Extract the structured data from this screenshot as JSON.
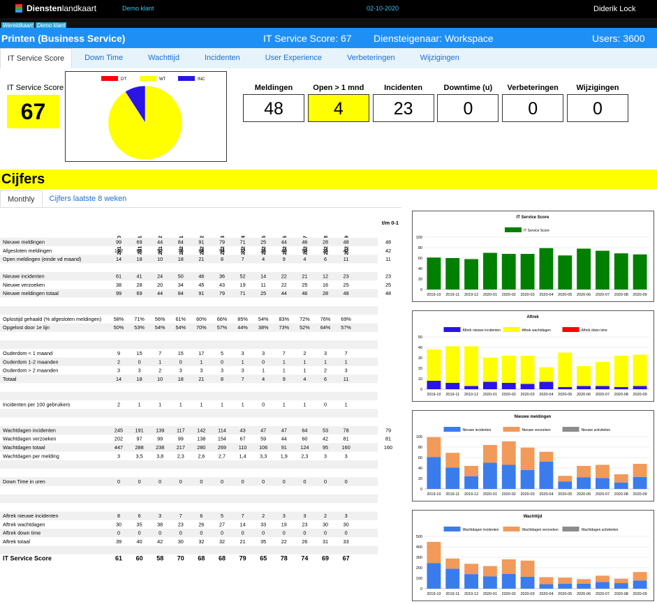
{
  "header": {
    "logo_bold": "Diensten",
    "logo_rest": "landkaart",
    "client": "Demo klant",
    "date": "02-10-2020",
    "user": "Diderik Lock"
  },
  "breadcrumb": [
    "Wereldkaart",
    "Demo klant"
  ],
  "service": {
    "title": "Printen (Business Service)",
    "score": "IT Service Score: 67",
    "owner": "Diensteigenaar: Workspace",
    "users": "Users: 3600"
  },
  "tabs": [
    "IT Service Score",
    "Down Time",
    "Wachttijd",
    "Incidenten",
    "User Experience",
    "Verbeteringen",
    "Wijzigingen"
  ],
  "score": {
    "label": "IT Service Score",
    "value": 67
  },
  "kpis": [
    {
      "label": "Meldingen",
      "value": 48,
      "color": "#ffffff"
    },
    {
      "label": "Open > 1 mnd",
      "value": 4,
      "color": "#ffff00"
    },
    {
      "label": "Incidenten",
      "value": 23,
      "color": "#ffffff"
    },
    {
      "label": "Downtime (u)",
      "value": 0,
      "color": "#ffffff"
    },
    {
      "label": "Verbeteringen",
      "value": 0,
      "color": "#ffffff"
    },
    {
      "label": "Wijzigingen",
      "value": 0,
      "color": "#ffffff"
    }
  ],
  "section": {
    "title": "Cijfers",
    "subtabs": [
      "Monthly",
      "Cijfers laatste 8 weken"
    ]
  },
  "table": {
    "columns": [
      "2019-10",
      "2019-11",
      "2019-12",
      "2020-01",
      "2020-02",
      "2020-03",
      "2020-04",
      "2020-05",
      "2020-06",
      "2020-07",
      "2020-08",
      "2020-09",
      "t/m 0-1"
    ],
    "groups": [
      [
        {
          "label": "Nieuwe meldingen",
          "cells": [
            99,
            69,
            44,
            84,
            91,
            79,
            71,
            25,
            44,
            46,
            28,
            48,
            48
          ]
        },
        {
          "label": "Afgesloten meldingen",
          "cells": [
            132,
            66,
            52,
            76,
            88,
            94,
            72,
            26,
            40,
            50,
            25,
            42,
            42
          ]
        },
        {
          "label": "Open meldingen (einde vd maand)",
          "cells": [
            14,
            18,
            10,
            18,
            21,
            8,
            7,
            4,
            9,
            4,
            6,
            11,
            11
          ]
        }
      ],
      [
        {
          "label": "Nieuwe incidenten",
          "cells": [
            61,
            41,
            24,
            50,
            46,
            36,
            52,
            14,
            22,
            21,
            12,
            23,
            23
          ]
        },
        {
          "label": "Nieuwe verzoeken",
          "cells": [
            38,
            28,
            20,
            34,
            45,
            43,
            19,
            11,
            22,
            25,
            16,
            25,
            25
          ]
        },
        {
          "label": "Nieuwe meldingen totaal",
          "cells": [
            99,
            69,
            44,
            84,
            91,
            79,
            71,
            25,
            44,
            46,
            28,
            48,
            48
          ]
        }
      ],
      [
        {
          "label": "Oplostijd gehaald (% afgesloten meldingen)",
          "cells": [
            "58%",
            "71%",
            "56%",
            "61%",
            "60%",
            "66%",
            "85%",
            "54%",
            "83%",
            "72%",
            "76%",
            "69%",
            null
          ]
        },
        {
          "label": "Opgelost door 1e lijn",
          "cells": [
            "50%",
            "53%",
            "54%",
            "54%",
            "70%",
            "57%",
            "44%",
            "38%",
            "73%",
            "52%",
            "64%",
            "57%",
            null
          ]
        }
      ],
      [
        {
          "label": "Ouderdom < 1 maand",
          "cells": [
            9,
            15,
            7,
            15,
            17,
            5,
            3,
            3,
            7,
            2,
            3,
            7,
            null
          ]
        },
        {
          "label": "Ouderdom 1-2 maanden",
          "cells": [
            2,
            0,
            1,
            0,
            1,
            0,
            1,
            0,
            1,
            1,
            1,
            1,
            null
          ]
        },
        {
          "label": "Ouderdom > 2 maanden",
          "cells": [
            3,
            3,
            2,
            3,
            3,
            3,
            3,
            1,
            1,
            1,
            2,
            3,
            null
          ]
        },
        {
          "label": "Totaal",
          "cells": [
            14,
            18,
            10,
            18,
            21,
            8,
            7,
            4,
            9,
            4,
            6,
            11,
            null
          ]
        }
      ],
      [
        {
          "label": "Incidenten per 100 gebruikers",
          "cells": [
            2,
            1,
            1,
            1,
            1,
            1,
            1,
            0,
            1,
            1,
            0,
            1,
            null
          ]
        }
      ],
      [
        {
          "label": "Wachtdagen incidenten",
          "cells": [
            245,
            191,
            139,
            117,
            142,
            114,
            43,
            47,
            47,
            64,
            53,
            78,
            79
          ]
        },
        {
          "label": "Wachtdagen verzoeken",
          "cells": [
            202,
            97,
            99,
            99,
            138,
            154,
            67,
            59,
            44,
            60,
            42,
            81,
            81
          ]
        },
        {
          "label": "Wachtdagen totaal",
          "cells": [
            447,
            288,
            238,
            217,
            280,
            269,
            110,
            106,
            91,
            124,
            95,
            160,
            160
          ]
        },
        {
          "label": "Wachtdagen per melding",
          "cells": [
            3,
            "3,5",
            "3,8",
            "2,3",
            "2,6",
            "2,7",
            "1,4",
            "3,3",
            "1,9",
            "2,3",
            3,
            3,
            null
          ]
        }
      ],
      [
        {
          "label": "Down Time in uren",
          "cells": [
            0,
            0,
            0,
            0,
            0,
            0,
            0,
            0,
            0,
            0,
            0,
            0,
            null
          ]
        }
      ],
      [
        {
          "label": "Aftrek nieuwe incidenten",
          "cells": [
            8,
            6,
            3,
            7,
            6,
            5,
            7,
            2,
            3,
            3,
            2,
            3,
            null
          ]
        },
        {
          "label": "Aftrek wachtdagen",
          "cells": [
            30,
            35,
            38,
            23,
            26,
            27,
            14,
            33,
            19,
            23,
            30,
            30,
            null
          ]
        },
        {
          "label": "Aftrek down time",
          "cells": [
            0,
            0,
            0,
            0,
            0,
            0,
            0,
            0,
            0,
            0,
            0,
            0,
            null
          ]
        },
        {
          "label": "Aftrek totaal",
          "cells": [
            39,
            40,
            42,
            30,
            32,
            32,
            21,
            35,
            22,
            26,
            31,
            33,
            null
          ]
        }
      ],
      [
        {
          "label": "IT Service Score",
          "cells": [
            61,
            60,
            58,
            70,
            68,
            68,
            79,
            65,
            78,
            74,
            69,
            67,
            null
          ]
        }
      ]
    ]
  },
  "chart_data": [
    {
      "type": "pie",
      "categories": [
        "DT",
        "WT",
        "INC"
      ],
      "values": [
        0,
        30,
        3
      ],
      "colors": [
        "#ff0000",
        "#ffff00",
        "#2a14e6"
      ]
    },
    {
      "type": "bar",
      "title": "IT Service Score",
      "categories": [
        "2019-10",
        "2019-11",
        "2019-12",
        "2020-01",
        "2020-02",
        "2020-03",
        "2020-04",
        "2020-05",
        "2020-06",
        "2020-07",
        "2020-08",
        "2020-09"
      ],
      "series": [
        {
          "name": "IT Service Score",
          "color": "#008000",
          "values": [
            61,
            60,
            58,
            70,
            68,
            68,
            79,
            65,
            78,
            74,
            69,
            67
          ]
        }
      ],
      "ylim": [
        0,
        100
      ],
      "yticks": [
        0,
        20,
        40,
        60,
        80,
        100
      ],
      "grid": true
    },
    {
      "type": "bar",
      "stacked": true,
      "title": "Aftrek",
      "categories": [
        "2019-10",
        "2019-11",
        "2019-12",
        "2020-01",
        "2020-02",
        "2020-03",
        "2020-04",
        "2020-05",
        "2020-06",
        "2020-07",
        "2020-08",
        "2020-09"
      ],
      "series": [
        {
          "name": "Aftrek nieuwe incidenten",
          "color": "#2a14e6",
          "values": [
            8,
            6,
            3,
            7,
            6,
            5,
            7,
            2,
            3,
            3,
            2,
            3
          ]
        },
        {
          "name": "Aftrek wachtdagen",
          "color": "#ffff00",
          "values": [
            30,
            35,
            38,
            23,
            26,
            27,
            14,
            33,
            19,
            23,
            30,
            30
          ]
        },
        {
          "name": "Aftrek down time",
          "color": "#ff0000",
          "values": [
            0,
            0,
            0,
            0,
            0,
            0,
            0,
            0,
            0,
            0,
            0,
            0
          ]
        }
      ],
      "ylim": [
        0,
        50
      ],
      "yticks": [
        0,
        10,
        20,
        30,
        40,
        50
      ],
      "grid": true
    },
    {
      "type": "bar",
      "stacked": true,
      "title": "Nieuwe meldingen",
      "categories": [
        "2019-10",
        "2019-11",
        "2019-12",
        "2020-01",
        "2020-02",
        "2020-03",
        "2020-04",
        "2020-05",
        "2020-06",
        "2020-07",
        "2020-08",
        "2020-09"
      ],
      "series": [
        {
          "name": "Nieuwe incidenten",
          "color": "#3b7ced",
          "values": [
            61,
            41,
            24,
            50,
            46,
            36,
            52,
            14,
            22,
            21,
            12,
            23
          ]
        },
        {
          "name": "Nieuwe verzoeken",
          "color": "#f19a5a",
          "values": [
            38,
            28,
            20,
            34,
            45,
            43,
            19,
            11,
            22,
            25,
            16,
            25
          ]
        },
        {
          "name": "Nieuwe activiteiten",
          "color": "#8c8c8c",
          "values": [
            0,
            0,
            0,
            0,
            0,
            0,
            0,
            0,
            0,
            0,
            0,
            0
          ]
        }
      ],
      "ylim": [
        0,
        100
      ],
      "yticks": [
        0,
        20,
        40,
        60,
        80,
        100
      ],
      "grid": true
    },
    {
      "type": "bar",
      "stacked": true,
      "title": "Wachttijd",
      "categories": [
        "2019-10",
        "2019-11",
        "2019-12",
        "2020-01",
        "2020-02",
        "2020-03",
        "2020-04",
        "2020-05",
        "2020-06",
        "2020-07",
        "2020-08",
        "2020-09"
      ],
      "series": [
        {
          "name": "Wachtdagen incidenten",
          "color": "#3b7ced",
          "values": [
            245,
            191,
            139,
            117,
            142,
            114,
            43,
            47,
            47,
            64,
            53,
            78
          ]
        },
        {
          "name": "Wachtdagen verzoeken",
          "color": "#f19a5a",
          "values": [
            202,
            97,
            99,
            99,
            138,
            154,
            67,
            59,
            44,
            60,
            42,
            81
          ]
        },
        {
          "name": "Wachtdagen activiteiten",
          "color": "#8c8c8c",
          "values": [
            0,
            0,
            0,
            0,
            0,
            0,
            0,
            0,
            0,
            0,
            0,
            0
          ]
        }
      ],
      "ylim": [
        0,
        500
      ],
      "yticks": [
        0,
        100,
        200,
        300,
        400,
        500
      ],
      "grid": true
    }
  ]
}
